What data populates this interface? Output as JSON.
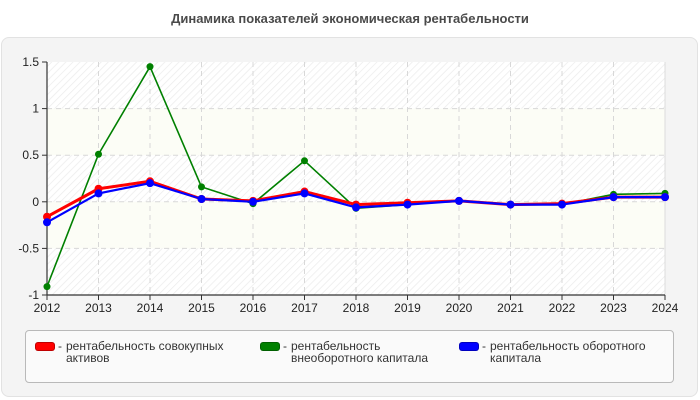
{
  "title": "Динамика показателей экономическая рентабельности",
  "chart_data": {
    "type": "line",
    "title": "Динамика показателей экономическая рентабельности",
    "xlabel": "",
    "ylabel": "",
    "ylim": [
      -1,
      1.5
    ],
    "yticks": [
      "1.5",
      "1",
      "0.5",
      "0",
      "-0.5",
      "-1"
    ],
    "grid": true,
    "legend_position": "bottom",
    "categories": [
      "2012",
      "2013",
      "2014",
      "2015",
      "2016",
      "2017",
      "2018",
      "2019",
      "2020",
      "2021",
      "2022",
      "2023",
      "2024"
    ],
    "series": [
      {
        "name": "рентабельность совокупных активов",
        "color": "#ff0000",
        "values": [
          -0.16,
          0.14,
          0.22,
          0.03,
          0.01,
          0.11,
          -0.03,
          -0.01,
          0.01,
          -0.03,
          -0.02,
          0.05,
          0.05
        ]
      },
      {
        "name": "рентабельность внеоборотного капитала",
        "color": "#008000",
        "values": [
          -0.91,
          0.51,
          1.45,
          0.16,
          -0.02,
          0.44,
          -0.07,
          -0.03,
          0.01,
          -0.03,
          -0.03,
          0.08,
          0.09
        ]
      },
      {
        "name": "рентабельность оборотного капитала",
        "color": "#0000ff",
        "values": [
          -0.22,
          0.09,
          0.2,
          0.03,
          0.0,
          0.09,
          -0.06,
          -0.03,
          0.01,
          -0.03,
          -0.03,
          0.05,
          0.05
        ]
      }
    ]
  },
  "legend": {
    "items": [
      {
        "label": "рентабельность совокупных активов",
        "color": "#ff0000"
      },
      {
        "label": "рентабельность внеоборотного капитала",
        "color": "#008000"
      },
      {
        "label": "рентабельность оборотного капитала",
        "color": "#0000ff"
      }
    ],
    "separator": "-"
  }
}
